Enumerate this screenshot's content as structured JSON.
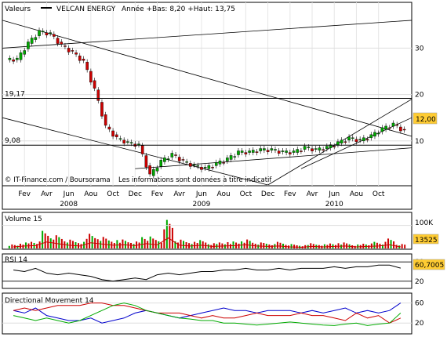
{
  "header": {
    "valeurs_label": "Valeurs",
    "security_name": "VELCAN ENERGY",
    "stats": "Année +Bas: 8,20 +Haut: 13,75"
  },
  "watermark": "© IT-Finance.com / Boursorama",
  "disclaimer": "Les informations sont données à titre indicatif",
  "colors": {
    "up": "#00aa00",
    "down": "#cc0000",
    "line": "#000000",
    "volume_ma": "#cc0000",
    "dm_plus": "#0000cc",
    "dm_minus": "#cc0000",
    "adx": "#00aa00",
    "badge_bg": "#ffcc33"
  },
  "chart_data": [
    {
      "name": "price",
      "type": "candlestick",
      "title": "VELCAN ENERGY",
      "y_ticks": [
        10,
        20,
        30
      ],
      "ylim": [
        0.5,
        37
      ],
      "labeled_levels": [
        {
          "label": "19,17",
          "value": 19.17
        },
        {
          "label": "9,08",
          "value": 9.08
        }
      ],
      "last_price_label": "12,00",
      "last_price": 12.0,
      "x_ticks": [
        "Fev",
        "Avr",
        "Jun",
        "Aou",
        "Oct",
        "Dec",
        "Fev",
        "Avr",
        "Jun",
        "Aou",
        "Oct",
        "Dec",
        "Fev",
        "Avr",
        "Jun",
        "Aou",
        "Oct"
      ],
      "x_years": [
        "2008",
        "2009",
        "2010"
      ],
      "monthly_close": [
        {
          "month": "2008-01",
          "close": 27.5
        },
        {
          "month": "2008-02",
          "close": 31.0
        },
        {
          "month": "2008-03",
          "close": 33.5
        },
        {
          "month": "2008-04",
          "close": 33.0
        },
        {
          "month": "2008-05",
          "close": 30.5
        },
        {
          "month": "2008-06",
          "close": 29.0
        },
        {
          "month": "2008-07",
          "close": 27.0
        },
        {
          "month": "2008-08",
          "close": 21.0
        },
        {
          "month": "2008-09",
          "close": 13.0
        },
        {
          "month": "2008-10",
          "close": 10.5
        },
        {
          "month": "2008-11",
          "close": 9.5
        },
        {
          "month": "2008-12",
          "close": 9.0
        },
        {
          "month": "2009-01",
          "close": 2.5
        },
        {
          "month": "2009-02",
          "close": 5.5
        },
        {
          "month": "2009-03",
          "close": 7.0
        },
        {
          "month": "2009-04",
          "close": 5.5
        },
        {
          "month": "2009-05",
          "close": 4.5
        },
        {
          "month": "2009-06",
          "close": 4.0
        },
        {
          "month": "2009-07",
          "close": 5.0
        },
        {
          "month": "2009-08",
          "close": 6.0
        },
        {
          "month": "2009-09",
          "close": 7.5
        },
        {
          "month": "2009-10",
          "close": 7.5
        },
        {
          "month": "2009-11",
          "close": 8.0
        },
        {
          "month": "2009-12",
          "close": 8.0
        },
        {
          "month": "2010-01",
          "close": 7.5
        },
        {
          "month": "2010-02",
          "close": 7.5
        },
        {
          "month": "2010-03",
          "close": 8.5
        },
        {
          "month": "2010-04",
          "close": 8.0
        },
        {
          "month": "2010-05",
          "close": 8.5
        },
        {
          "month": "2010-06",
          "close": 9.5
        },
        {
          "month": "2010-07",
          "close": 10.5
        },
        {
          "month": "2010-08",
          "close": 10.0
        },
        {
          "month": "2010-09",
          "close": 11.0
        },
        {
          "month": "2010-10",
          "close": 12.5
        },
        {
          "month": "2010-11",
          "close": 13.5
        },
        {
          "month": "2010-12",
          "close": 12.0
        }
      ],
      "trendlines": [
        {
          "from": {
            "month": "2007-12",
            "value": 30
          },
          "to": {
            "month": "2011-01",
            "value": 36
          }
        },
        {
          "from": {
            "month": "2007-12",
            "value": 36
          },
          "to": {
            "month": "2011-01",
            "value": 11
          }
        },
        {
          "from": {
            "month": "2007-12",
            "value": 15
          },
          "to": {
            "month": "2009-12",
            "value": 0.5
          }
        },
        {
          "from": {
            "month": "2008-12",
            "value": 4
          },
          "to": {
            "month": "2011-01",
            "value": 8.5
          }
        },
        {
          "from": {
            "month": "2009-12",
            "value": 0.5
          },
          "to": {
            "month": "2011-01",
            "value": 19
          }
        },
        {
          "from": {
            "month": "2010-03",
            "value": 4
          },
          "to": {
            "month": "2011-01",
            "value": 15
          }
        }
      ]
    },
    {
      "name": "volume",
      "type": "bar",
      "title": "Volume 15",
      "y_ticks_labels": [
        "100K"
      ],
      "y_ticks": [
        100000
      ],
      "ylim": [
        0,
        150000
      ],
      "last_value_label": "13525",
      "last_value": 13525,
      "monthly_volume": [
        20000,
        30000,
        35000,
        80000,
        60000,
        40000,
        30000,
        70000,
        55000,
        40000,
        45000,
        35000,
        60000,
        45000,
        130000,
        40000,
        30000,
        40000,
        25000,
        30000,
        35000,
        45000,
        30000,
        25000,
        30000,
        20000,
        15000,
        25000,
        20000,
        25000,
        30000,
        20000,
        25000,
        30000,
        45000,
        20000
      ]
    },
    {
      "name": "rsi",
      "type": "line",
      "title": "RSI 14",
      "y_ticks": [
        20,
        80
      ],
      "ylim": [
        0,
        100
      ],
      "last_value_label": "60,7005",
      "last_value": 60.7005,
      "monthly_rsi": [
        55,
        50,
        60,
        45,
        40,
        45,
        40,
        35,
        25,
        20,
        25,
        30,
        25,
        40,
        45,
        40,
        45,
        50,
        50,
        55,
        55,
        60,
        55,
        55,
        60,
        55,
        60,
        60,
        60,
        65,
        60,
        65,
        65,
        70,
        70,
        60.7
      ]
    },
    {
      "name": "dmi",
      "type": "line",
      "title": "Directional Movement 14",
      "y_ticks": [
        20,
        60
      ],
      "ylim": [
        0,
        75
      ],
      "series": [
        {
          "key": "plus",
          "values": [
            45,
            40,
            50,
            35,
            30,
            25,
            25,
            30,
            20,
            25,
            30,
            40,
            45,
            40,
            35,
            30,
            35,
            40,
            45,
            50,
            45,
            45,
            40,
            45,
            45,
            45,
            40,
            45,
            40,
            45,
            50,
            40,
            45,
            40,
            45,
            60
          ]
        },
        {
          "key": "minus",
          "values": [
            45,
            50,
            45,
            50,
            55,
            55,
            55,
            60,
            60,
            55,
            55,
            50,
            45,
            40,
            40,
            40,
            35,
            30,
            35,
            30,
            30,
            35,
            40,
            35,
            35,
            35,
            40,
            35,
            35,
            30,
            25,
            40,
            30,
            35,
            20,
            30
          ]
        },
        {
          "key": "adx",
          "values": [
            35,
            30,
            25,
            30,
            25,
            20,
            25,
            35,
            45,
            55,
            60,
            55,
            45,
            40,
            35,
            30,
            28,
            25,
            25,
            20,
            20,
            18,
            16,
            18,
            20,
            22,
            20,
            18,
            16,
            15,
            18,
            20,
            15,
            18,
            20,
            40
          ]
        }
      ]
    }
  ]
}
